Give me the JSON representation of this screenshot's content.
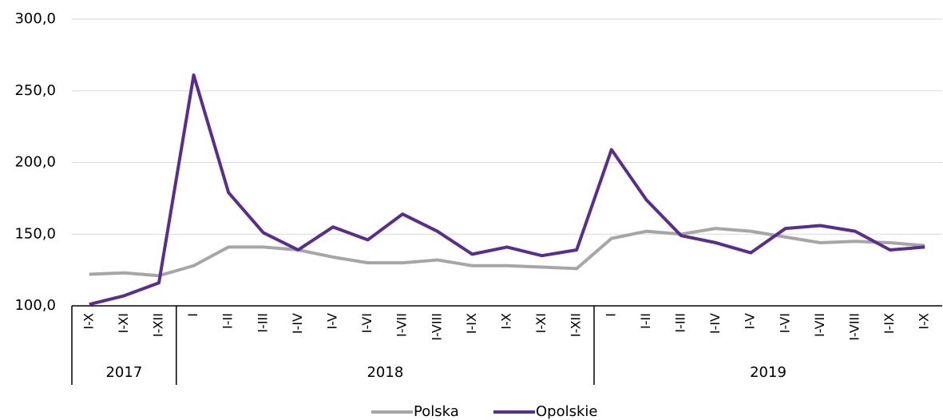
{
  "chart_data": {
    "type": "line",
    "groups": [
      {
        "name": "2017",
        "categories": [
          "I-X",
          "I-XI",
          "I-XII"
        ]
      },
      {
        "name": "2018",
        "categories": [
          "I",
          "I-II",
          "I-III",
          "I-IV",
          "I-V",
          "I-VI",
          "I-VII",
          "I-VIII",
          "I-IX",
          "I-X",
          "I-XI",
          "I-XII"
        ]
      },
      {
        "name": "2019",
        "categories": [
          "I",
          "I-II",
          "I-III",
          "I-IV",
          "I-V",
          "I-VI",
          "I-VII",
          "I-VIII",
          "I-IX",
          "I-X"
        ]
      }
    ],
    "series": [
      {
        "name": "Polska",
        "color": "#a6a6a6",
        "values": [
          122,
          123,
          121,
          128,
          141,
          141,
          139,
          134,
          130,
          130,
          132,
          128,
          128,
          127,
          126,
          147,
          152,
          150,
          154,
          152,
          148,
          144,
          145,
          144,
          142
        ]
      },
      {
        "name": "Opolskie",
        "color": "#582c91",
        "values": [
          101,
          107,
          116,
          261,
          179,
          151,
          139,
          155,
          146,
          164,
          152,
          136,
          141,
          135,
          139,
          209,
          174,
          149,
          144,
          137,
          154,
          156,
          152,
          139,
          141
        ]
      }
    ],
    "ylim": [
      100,
      300
    ],
    "yticks": [
      {
        "value": 100,
        "label": "100,0"
      },
      {
        "value": 150,
        "label": "150,0"
      },
      {
        "value": 200,
        "label": "200,0"
      },
      {
        "value": 250,
        "label": "250,0"
      },
      {
        "value": 300,
        "label": "300,0"
      }
    ],
    "grid": true,
    "legend": "bottom"
  }
}
